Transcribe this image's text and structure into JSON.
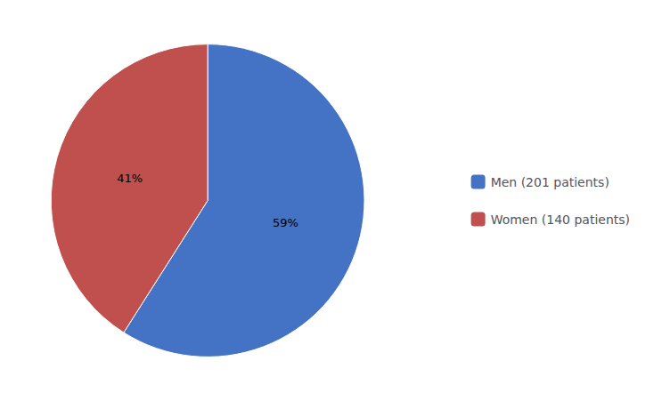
{
  "chart_data": {
    "type": "pie",
    "categories": [
      "Men (201 patients)",
      "Women (140 patients)"
    ],
    "values": [
      59,
      41
    ],
    "value_labels": [
      "59%",
      "41%"
    ],
    "data_labels": true,
    "colors": [
      "#4472C4",
      "#C0504D"
    ],
    "legend": "right"
  }
}
